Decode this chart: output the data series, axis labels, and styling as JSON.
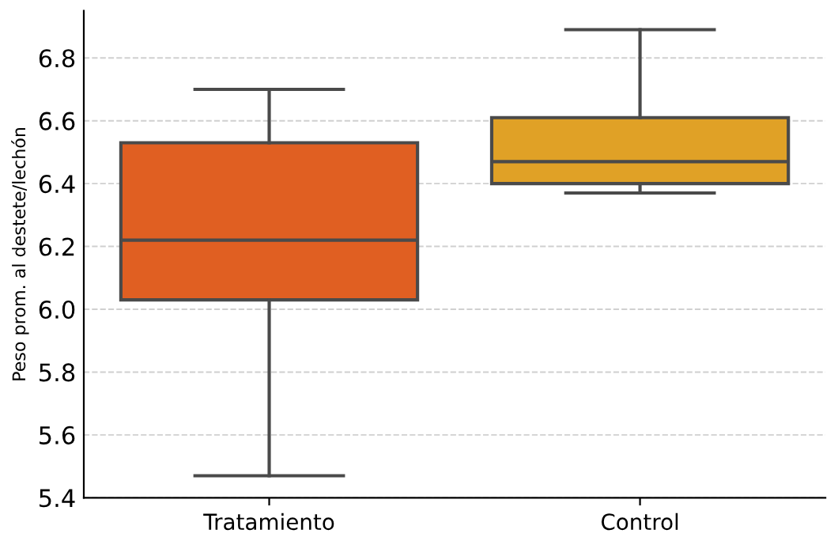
{
  "chart_data": {
    "type": "box",
    "ylabel": "Peso prom. al destete/lechón",
    "categories": [
      "Tratamiento",
      "Control"
    ],
    "boxes": [
      {
        "low": 5.47,
        "q1": 6.03,
        "median": 6.22,
        "q3": 6.53,
        "high": 6.7
      },
      {
        "low": 6.37,
        "q1": 6.4,
        "median": 6.47,
        "q3": 6.61,
        "high": 6.89
      }
    ],
    "colors": [
      "#e05f22",
      "#e0a126"
    ],
    "ylim": [
      5.4,
      6.95
    ],
    "yticks": [
      5.4,
      5.6,
      5.8,
      {
        "value": 6,
        "label": "6.0"
      },
      6.2,
      6.4,
      6.6,
      6.8
    ],
    "grid": "y"
  }
}
